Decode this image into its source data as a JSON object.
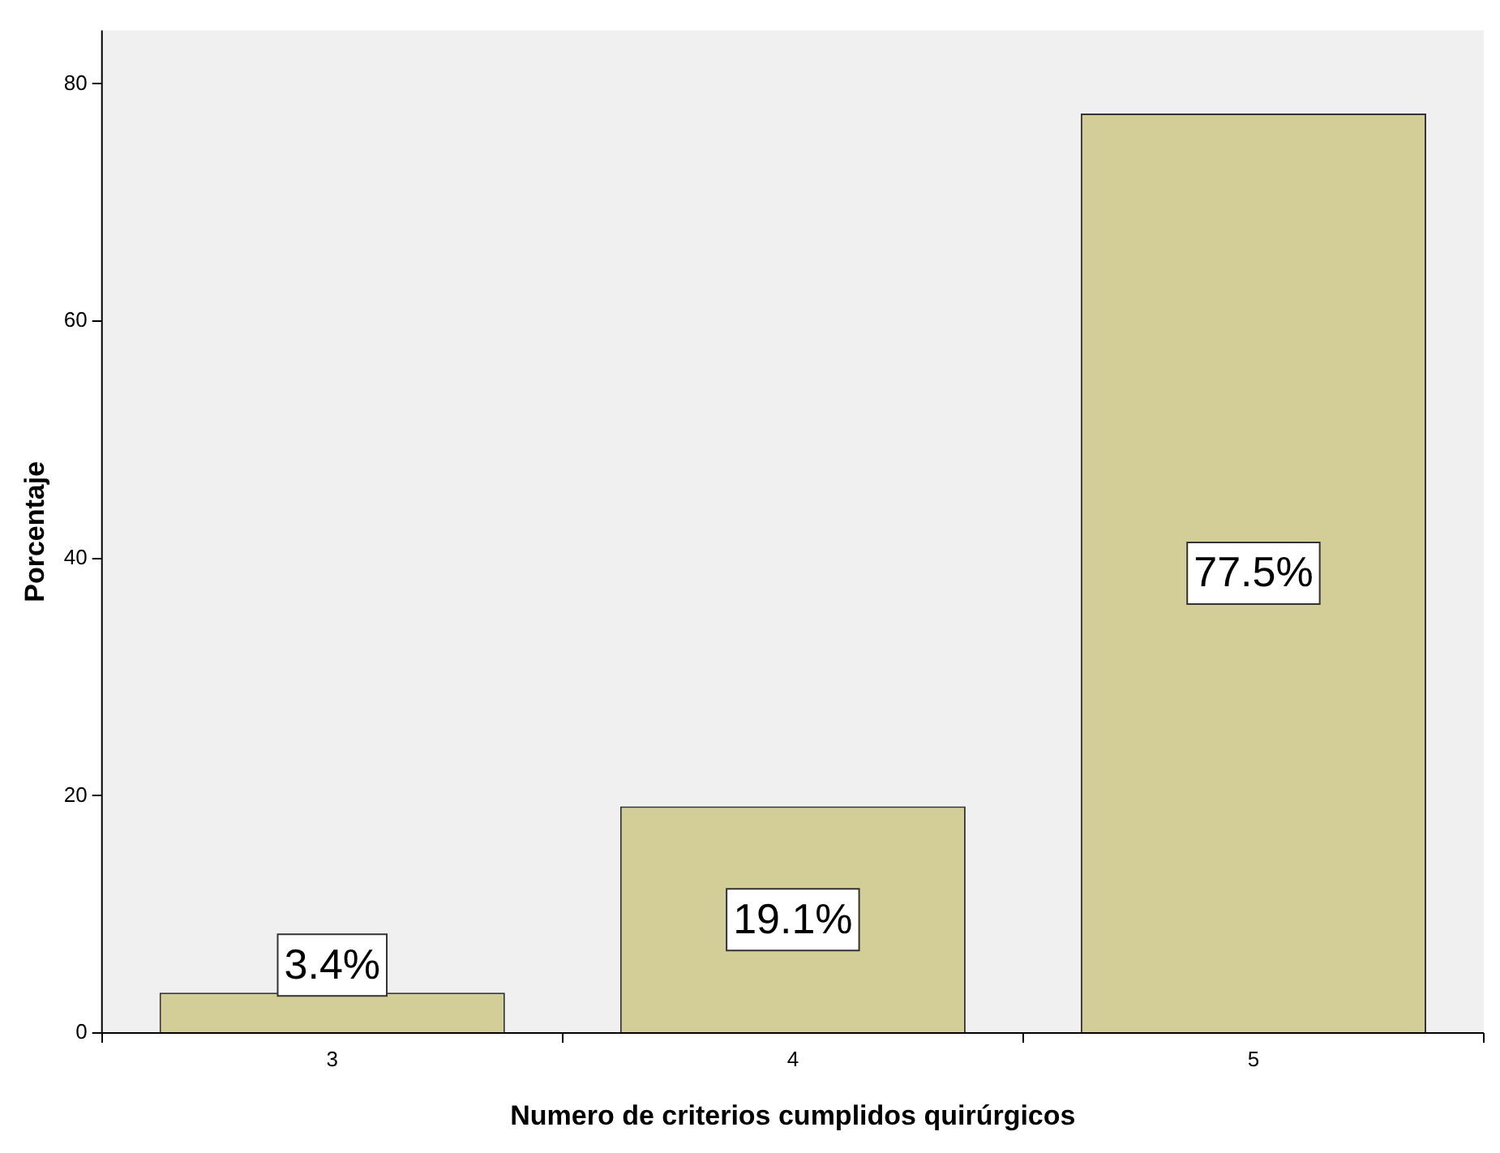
{
  "chart_data": {
    "type": "bar",
    "xlabel": "Numero de criterios cumplidos quirúrgicos",
    "ylabel": "Porcentaje",
    "categories": [
      "3",
      "4",
      "5"
    ],
    "values": [
      3.4,
      19.1,
      77.5
    ],
    "value_labels": [
      "3.4%",
      "19.1%",
      "77.5%"
    ],
    "color": "#d3ce98",
    "ylim": [
      0,
      84.5
    ],
    "yticks": [
      0,
      20,
      40,
      60,
      80
    ],
    "grid": false,
    "legend": false
  }
}
